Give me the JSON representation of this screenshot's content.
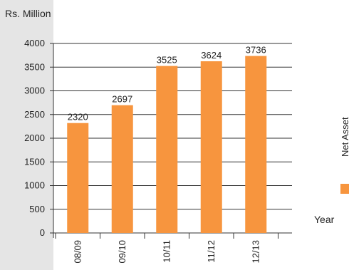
{
  "chart_data": {
    "type": "bar",
    "unit_label": "Rs. Million",
    "categories": [
      "08/09",
      "09/10",
      "10/11",
      "11/12",
      "12/13"
    ],
    "series": [
      {
        "name": "Net Asset",
        "values": [
          2320,
          2697,
          3525,
          3624,
          3736
        ]
      }
    ],
    "data_labels": [
      "2320",
      "2697",
      "3525",
      "3624",
      "3736"
    ],
    "y_ticks": [
      0,
      500,
      1000,
      1500,
      2000,
      2500,
      3000,
      3500,
      4000
    ],
    "ylim": [
      0,
      4000
    ],
    "xlabel": "Year",
    "grid": true,
    "legend": "right",
    "colors": {
      "bar": "#F7953E",
      "grid": "#333333",
      "panel": "#E5E5E5"
    }
  }
}
